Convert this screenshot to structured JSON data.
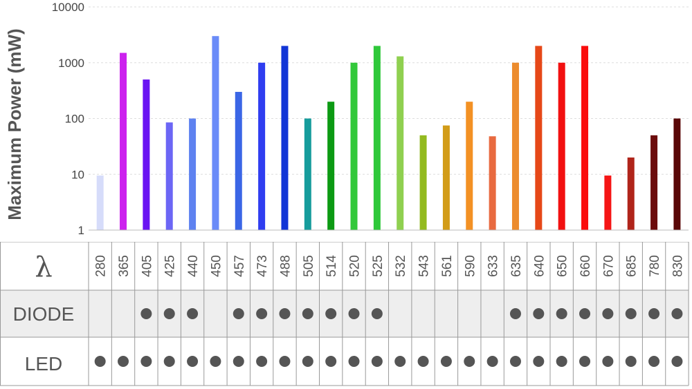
{
  "chart_data": {
    "type": "bar",
    "ylabel": "Maximum Power (mW)",
    "yscale": "log",
    "ylim": [
      1,
      10000
    ],
    "yticks": [
      "1",
      "10",
      "100",
      "1000",
      "10000"
    ],
    "grid": true,
    "categories": [
      "280",
      "365",
      "405",
      "425",
      "440",
      "450",
      "457",
      "473",
      "488",
      "505",
      "514",
      "520",
      "525",
      "532",
      "543",
      "561",
      "590",
      "633",
      "635",
      "640",
      "650",
      "660",
      "670",
      "685",
      "780",
      "830"
    ],
    "values": [
      9.5,
      1500,
      500,
      85,
      100,
      3000,
      300,
      1000,
      2000,
      100,
      200,
      1000,
      2000,
      1300,
      50,
      75,
      200,
      48,
      1000,
      2000,
      1000,
      2000,
      9.5,
      20,
      50,
      100
    ],
    "colors": [
      "#d6dcfa",
      "#cc22ee",
      "#6a14f2",
      "#6c66f5",
      "#5e82f0",
      "#6a8bf8",
      "#3b66e6",
      "#2f3df0",
      "#1135d6",
      "#179c9c",
      "#0c9a13",
      "#32c83a",
      "#2fc83a",
      "#8fd050",
      "#93ba20",
      "#d29c18",
      "#f39124",
      "#e86a40",
      "#ec8c2e",
      "#e64818",
      "#f21010",
      "#fa0d0d",
      "#f51515",
      "#b0241a",
      "#6c0c0c",
      "#5a0808"
    ]
  },
  "table": {
    "lambda_symbol": "λ",
    "rows": [
      {
        "label": "DIODE",
        "marks": [
          false,
          false,
          true,
          true,
          true,
          false,
          true,
          true,
          true,
          true,
          true,
          true,
          true,
          false,
          false,
          false,
          false,
          false,
          true,
          true,
          true,
          true,
          true,
          true,
          true,
          true
        ]
      },
      {
        "label": "LED",
        "marks": [
          true,
          true,
          true,
          true,
          true,
          true,
          true,
          true,
          true,
          true,
          true,
          true,
          true,
          true,
          true,
          true,
          true,
          true,
          true,
          true,
          true,
          true,
          true,
          true,
          true,
          true
        ]
      }
    ],
    "dot_color": "#555555"
  }
}
